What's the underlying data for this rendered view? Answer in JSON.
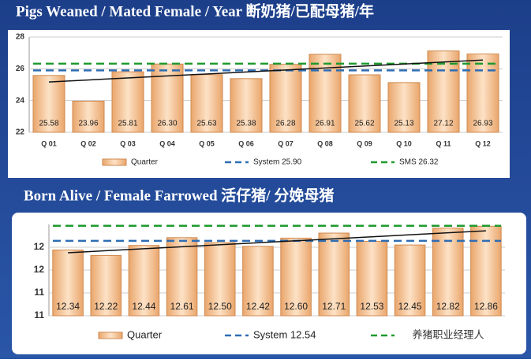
{
  "chart_data": [
    {
      "type": "bar",
      "title": "Pigs Weaned / Mated Female / Year 断奶猪/已配母猪/年",
      "categories": [
        "Q 01",
        "Q 02",
        "Q 03",
        "Q 04",
        "Q 05",
        "Q 06",
        "Q 07",
        "Q 08",
        "Q 09",
        "Q 10",
        "Q 11",
        "Q 12"
      ],
      "series": [
        {
          "name": "Quarter",
          "color": "#f7c79b",
          "values": [
            25.58,
            23.96,
            25.81,
            26.3,
            25.63,
            25.38,
            26.28,
            26.91,
            25.62,
            25.13,
            27.12,
            26.93
          ],
          "value_labels": [
            "25.58",
            "23.96",
            "25.81",
            "26.30",
            "25.63",
            "25.38",
            "26.28",
            "26.91",
            "25.62",
            "25.13",
            "27.12",
            "26.93"
          ]
        }
      ],
      "reference_lines": [
        {
          "name": "System 25.90",
          "value": 25.9,
          "color": "#2e6db4"
        },
        {
          "name": "SMS 26.32",
          "value": 26.32,
          "color": "#1f9a2e"
        }
      ],
      "trend": [
        25.17,
        26.55
      ],
      "ylim": [
        22,
        28
      ],
      "yticks": [
        22,
        24,
        26,
        28
      ],
      "grid": true
    },
    {
      "type": "bar",
      "title": "Born Alive / Female Farrowed 活仔猪/ 分娩母猪",
      "series": [
        {
          "name": "Quarter",
          "color": "#f7c79b",
          "values": [
            12.34,
            12.22,
            12.44,
            12.61,
            12.5,
            12.42,
            12.6,
            12.71,
            12.53,
            12.45,
            12.82,
            12.86
          ],
          "value_labels": [
            "12.34",
            "12.22",
            "12.44",
            "12.61",
            "12.50",
            "12.42",
            "12.60",
            "12.71",
            "12.53",
            "12.45",
            "12.82",
            "12.86"
          ]
        }
      ],
      "reference_lines": [
        {
          "name": "System 12.54",
          "value": 12.54,
          "color": "#2e6db4"
        },
        {
          "value": 12.87,
          "color": "#1f9a2e"
        }
      ],
      "trend": [
        12.28,
        12.76
      ],
      "ylim": [
        10.9,
        12.9
      ],
      "yticks": [
        {
          "value": 10.9,
          "label": "11"
        },
        {
          "value": 11.4,
          "label": "11"
        },
        {
          "value": 11.9,
          "label": "12"
        },
        {
          "value": 12.4,
          "label": "12"
        }
      ],
      "grid": true
    }
  ],
  "watermark": "养猪职业经理人"
}
